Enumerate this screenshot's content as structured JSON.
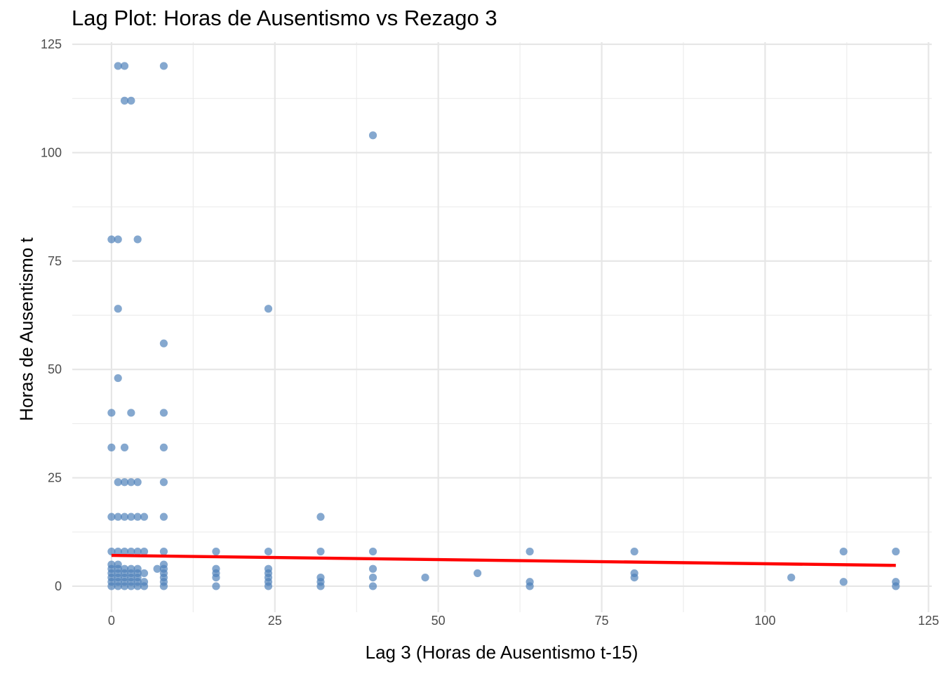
{
  "chart_data": {
    "type": "scatter",
    "title": "Lag Plot: Horas de Ausentismo vs Rezago 3",
    "xlabel": "Lag 3 (Horas de Ausentismo t-15)",
    "ylabel": "Horas de Ausentismo t",
    "xlim": [
      -6,
      125.5
    ],
    "ylim": [
      -6,
      125.5
    ],
    "x_ticks": [
      0,
      25,
      50,
      75,
      100,
      125
    ],
    "y_ticks": [
      0,
      25,
      50,
      75,
      100,
      125
    ],
    "grid": true,
    "point_color": "#4b7fb8",
    "line_color": "#ff0000",
    "points": [
      [
        1,
        120
      ],
      [
        2,
        120
      ],
      [
        8,
        120
      ],
      [
        2,
        112
      ],
      [
        3,
        112
      ],
      [
        40,
        104
      ],
      [
        0,
        80
      ],
      [
        1,
        80
      ],
      [
        4,
        80
      ],
      [
        1,
        64
      ],
      [
        24,
        64
      ],
      [
        8,
        56
      ],
      [
        1,
        48
      ],
      [
        0,
        40
      ],
      [
        3,
        40
      ],
      [
        8,
        40
      ],
      [
        0,
        32
      ],
      [
        2,
        32
      ],
      [
        8,
        32
      ],
      [
        1,
        24
      ],
      [
        2,
        24
      ],
      [
        3,
        24
      ],
      [
        4,
        24
      ],
      [
        8,
        24
      ],
      [
        0,
        16
      ],
      [
        1,
        16
      ],
      [
        2,
        16
      ],
      [
        3,
        16
      ],
      [
        4,
        16
      ],
      [
        5,
        16
      ],
      [
        8,
        16
      ],
      [
        32,
        16
      ],
      [
        0,
        8
      ],
      [
        1,
        8
      ],
      [
        2,
        8
      ],
      [
        3,
        8
      ],
      [
        4,
        8
      ],
      [
        5,
        8
      ],
      [
        8,
        8
      ],
      [
        16,
        8
      ],
      [
        24,
        8
      ],
      [
        32,
        8
      ],
      [
        40,
        8
      ],
      [
        64,
        8
      ],
      [
        80,
        8
      ],
      [
        112,
        8
      ],
      [
        120,
        8
      ],
      [
        0,
        5
      ],
      [
        1,
        5
      ],
      [
        8,
        5
      ],
      [
        0,
        4
      ],
      [
        1,
        4
      ],
      [
        2,
        4
      ],
      [
        3,
        4
      ],
      [
        4,
        4
      ],
      [
        7,
        4
      ],
      [
        8,
        4
      ],
      [
        16,
        4
      ],
      [
        24,
        4
      ],
      [
        40,
        4
      ],
      [
        0,
        3
      ],
      [
        1,
        3
      ],
      [
        2,
        3
      ],
      [
        3,
        3
      ],
      [
        4,
        3
      ],
      [
        5,
        3
      ],
      [
        8,
        3
      ],
      [
        16,
        3
      ],
      [
        24,
        3
      ],
      [
        56,
        3
      ],
      [
        80,
        3
      ],
      [
        0,
        2
      ],
      [
        1,
        2
      ],
      [
        2,
        2
      ],
      [
        3,
        2
      ],
      [
        4,
        2
      ],
      [
        8,
        2
      ],
      [
        16,
        2
      ],
      [
        24,
        2
      ],
      [
        32,
        2
      ],
      [
        40,
        2
      ],
      [
        48,
        2
      ],
      [
        80,
        2
      ],
      [
        104,
        2
      ],
      [
        0,
        1
      ],
      [
        1,
        1
      ],
      [
        2,
        1
      ],
      [
        3,
        1
      ],
      [
        4,
        1
      ],
      [
        5,
        1
      ],
      [
        8,
        1
      ],
      [
        24,
        1
      ],
      [
        32,
        1
      ],
      [
        64,
        1
      ],
      [
        112,
        1
      ],
      [
        120,
        1
      ],
      [
        0,
        0
      ],
      [
        1,
        0
      ],
      [
        2,
        0
      ],
      [
        3,
        0
      ],
      [
        4,
        0
      ],
      [
        5,
        0
      ],
      [
        8,
        0
      ],
      [
        16,
        0
      ],
      [
        24,
        0
      ],
      [
        32,
        0
      ],
      [
        40,
        0
      ],
      [
        64,
        0
      ],
      [
        120,
        0
      ]
    ],
    "trend_line": {
      "x": [
        0,
        120
      ],
      "y": [
        7.1,
        4.8
      ]
    }
  }
}
